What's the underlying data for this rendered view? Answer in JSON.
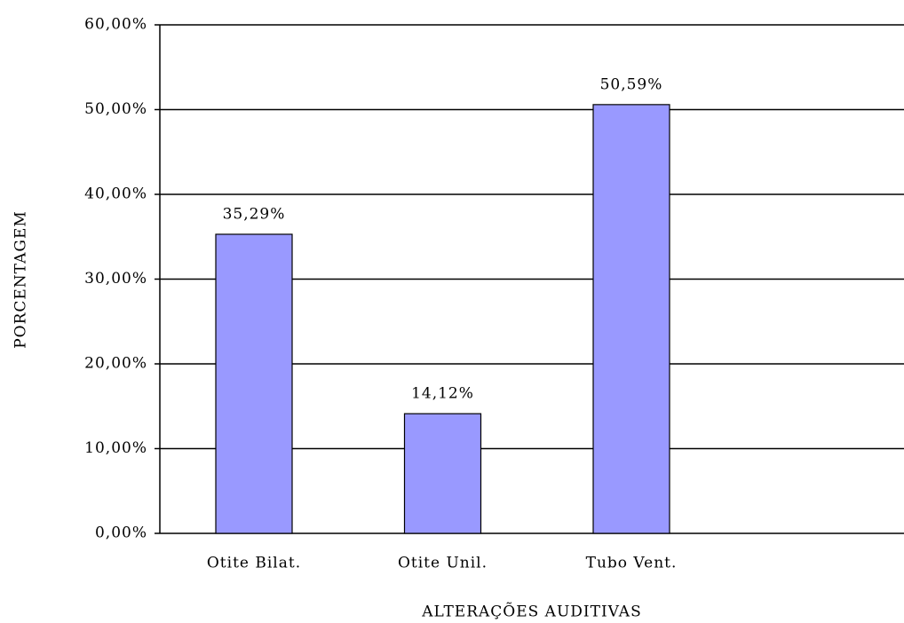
{
  "chart_data": {
    "type": "bar",
    "categories": [
      "Otite Bilat.",
      "Otite Unil.",
      "Tubo Vent."
    ],
    "values": [
      35.29,
      14.12,
      50.59
    ],
    "value_labels": [
      "35,29%",
      "14,12%",
      "50,59%"
    ],
    "color": "#9999ff",
    "xlabel": "ALTERAÇÕES AUDITIVAS",
    "ylabel": "PORCENTAGEM",
    "ylim": [
      0,
      60
    ],
    "yticks": [
      {
        "value": 0,
        "label": "0,00%"
      },
      {
        "value": 10,
        "label": "10,00%"
      },
      {
        "value": 20,
        "label": "20,00%"
      },
      {
        "value": 30,
        "label": "30,00%"
      },
      {
        "value": 40,
        "label": "40,00%"
      },
      {
        "value": 50,
        "label": "50,00%"
      },
      {
        "value": 60,
        "label": "60,00%"
      }
    ],
    "grid": true
  }
}
